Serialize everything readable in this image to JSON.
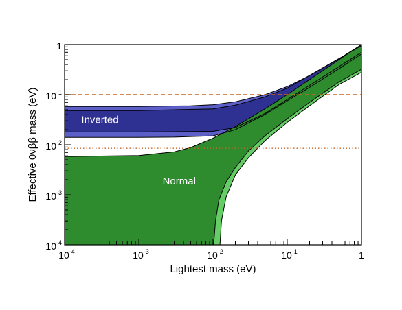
{
  "chart_data": {
    "type": "area",
    "title": "",
    "xlabel": "Lightest mass (eV)",
    "ylabel": "Effective 0νββ mass (eV)",
    "xscale": "log",
    "yscale": "log",
    "xlim": [
      0.0001,
      1
    ],
    "ylim": [
      0.0001,
      1
    ],
    "x_ticks": [
      {
        "base": "10",
        "exp": "-4",
        "value": 0.0001
      },
      {
        "base": "10",
        "exp": "-3",
        "value": 0.001
      },
      {
        "base": "10",
        "exp": "-2",
        "value": 0.01
      },
      {
        "base": "10",
        "exp": "-1",
        "value": 0.1
      },
      {
        "base": "1",
        "exp": "",
        "value": 1
      }
    ],
    "y_ticks": [
      {
        "base": "10",
        "exp": "-4",
        "value": 0.0001
      },
      {
        "base": "10",
        "exp": "-3",
        "value": 0.001
      },
      {
        "base": "10",
        "exp": "-2",
        "value": 0.01
      },
      {
        "base": "10",
        "exp": "-1",
        "value": 0.1
      },
      {
        "base": "1",
        "exp": "",
        "value": 1
      }
    ],
    "grid": false,
    "bands": [
      {
        "name": "Inverted",
        "label_at": [
          0.0003,
          0.027
        ],
        "color": "#2e3192",
        "outer_color": "#5b5fc7",
        "upper": [
          [
            0.0001,
            0.058
          ],
          [
            0.001,
            0.058
          ],
          [
            0.005,
            0.06
          ],
          [
            0.01,
            0.063
          ],
          [
            0.02,
            0.072
          ],
          [
            0.05,
            0.1
          ],
          [
            0.1,
            0.145
          ],
          [
            0.2,
            0.24
          ],
          [
            0.5,
            0.52
          ],
          [
            1,
            1.0
          ]
        ],
        "lower": [
          [
            0.0001,
            0.014
          ],
          [
            0.001,
            0.014
          ],
          [
            0.003,
            0.0142
          ],
          [
            0.01,
            0.015
          ],
          [
            0.02,
            0.02
          ],
          [
            0.05,
            0.04
          ],
          [
            0.1,
            0.075
          ],
          [
            0.2,
            0.14
          ],
          [
            0.5,
            0.33
          ],
          [
            1,
            0.65
          ]
        ],
        "inner_upper": [
          [
            0.0001,
            0.048
          ],
          [
            0.001,
            0.048
          ],
          [
            0.01,
            0.052
          ],
          [
            0.02,
            0.062
          ],
          [
            0.05,
            0.09
          ],
          [
            0.1,
            0.135
          ],
          [
            1,
            0.95
          ]
        ],
        "inner_lower": [
          [
            0.0001,
            0.018
          ],
          [
            0.001,
            0.018
          ],
          [
            0.01,
            0.0185
          ],
          [
            0.02,
            0.022
          ],
          [
            0.05,
            0.042
          ],
          [
            0.1,
            0.08
          ],
          [
            1,
            0.7
          ]
        ]
      },
      {
        "name": "Normal",
        "label_at": [
          0.0035,
          0.0016
        ],
        "color": "#2e8b2e",
        "outer_color": "#66cc66",
        "upper": [
          [
            0.0001,
            0.0058
          ],
          [
            0.001,
            0.0061
          ],
          [
            0.003,
            0.0072
          ],
          [
            0.005,
            0.0088
          ],
          [
            0.01,
            0.0135
          ],
          [
            0.02,
            0.023
          ],
          [
            0.05,
            0.052
          ],
          [
            0.1,
            0.1
          ],
          [
            0.2,
            0.2
          ],
          [
            0.5,
            0.5
          ],
          [
            1,
            1.0
          ]
        ],
        "lower_outer": [
          [
            0.0124,
            0.0001
          ],
          [
            0.013,
            0.0003
          ],
          [
            0.015,
            0.0009
          ],
          [
            0.02,
            0.0025
          ],
          [
            0.03,
            0.0055
          ],
          [
            0.05,
            0.012
          ],
          [
            0.1,
            0.028
          ],
          [
            0.2,
            0.06
          ],
          [
            0.5,
            0.16
          ],
          [
            1,
            0.28
          ]
        ],
        "lower_inner": [
          [
            0.0102,
            0.0001
          ],
          [
            0.0108,
            0.0003
          ],
          [
            0.012,
            0.0008
          ],
          [
            0.015,
            0.0018
          ],
          [
            0.02,
            0.0035
          ],
          [
            0.03,
            0.0075
          ],
          [
            0.05,
            0.015
          ],
          [
            0.1,
            0.033
          ],
          [
            0.2,
            0.07
          ],
          [
            0.5,
            0.18
          ],
          [
            1,
            0.32
          ]
        ]
      }
    ],
    "reference_lines": [
      {
        "y": 0.1,
        "style": "dashed",
        "color": "#c8641e"
      },
      {
        "y": 0.0085,
        "style": "dotted",
        "color": "#c8641e"
      }
    ]
  }
}
